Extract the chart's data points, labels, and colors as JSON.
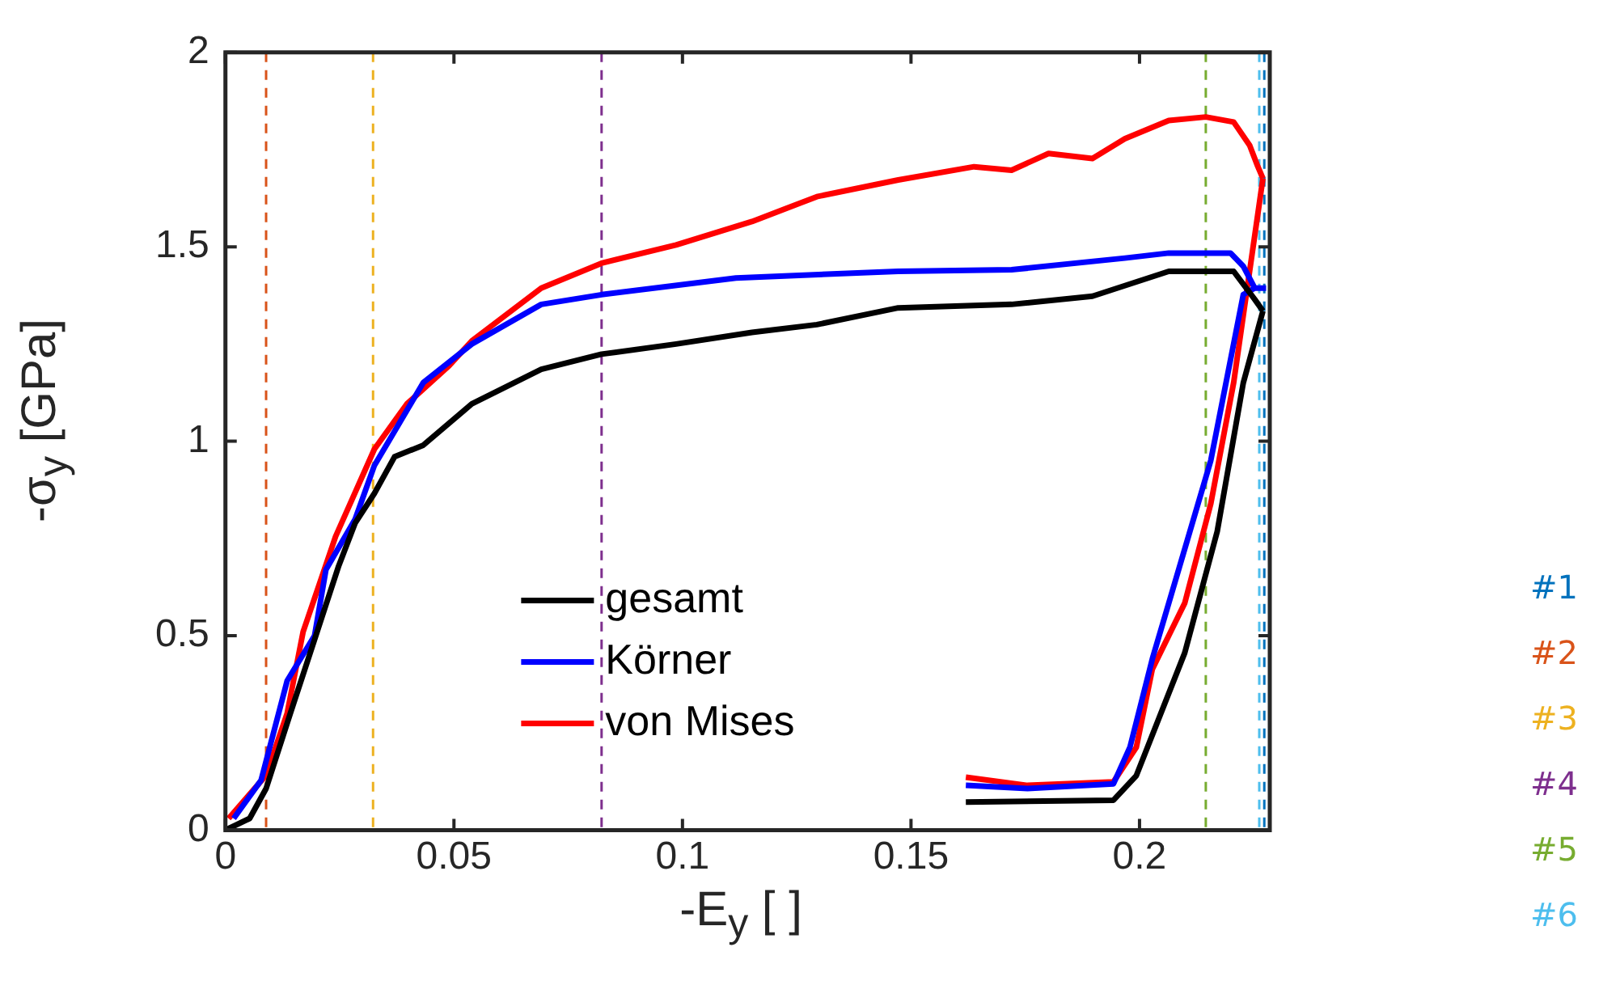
{
  "chart_data": {
    "type": "line",
    "xlabel": "-E$_{y}$ [ ]",
    "ylabel": "-σ$_{y}$ [GPa]",
    "xlim": [
      0,
      0.2285
    ],
    "ylim": [
      0,
      2
    ],
    "xticks": [
      0,
      0.05,
      0.1,
      0.15,
      0.2
    ],
    "yticks": [
      0,
      0.5,
      1,
      1.5,
      2
    ],
    "grid": false,
    "legend": "bottom",
    "line_style": "solid",
    "marker": "none",
    "series": [
      {
        "name": "gesamt",
        "color": "#000000",
        "x": [
          0,
          0.0053,
          0.0089,
          0.0142,
          0.0195,
          0.0248,
          0.0284,
          0.0326,
          0.037,
          0.0433,
          0.0539,
          0.0691,
          0.0823,
          0.0986,
          0.1152,
          0.1294,
          0.1472,
          0.172,
          0.1897,
          0.2064,
          0.2206,
          0.2252,
          0.227,
          null,
          0.162,
          0.1943,
          0.1993,
          0.2099,
          0.217,
          0.2227,
          0.227
        ],
        "values": [
          0,
          0.03,
          0.107,
          0.3,
          0.49,
          0.68,
          0.79,
          0.866,
          0.96,
          0.99,
          1.096,
          1.185,
          1.224,
          1.25,
          1.28,
          1.3,
          1.343,
          1.352,
          1.373,
          1.437,
          1.437,
          1.365,
          1.335,
          null,
          0.072,
          0.077,
          0.14,
          0.456,
          0.768,
          1.15,
          1.335
        ]
      },
      {
        "name": "Körner",
        "color": "#0000ff",
        "x": [
          0.0018,
          0.0078,
          0.0135,
          0.0195,
          0.022,
          0.0284,
          0.0326,
          0.0433,
          0.0539,
          0.0691,
          0.0823,
          0.1117,
          0.1472,
          0.172,
          0.1968,
          0.2064,
          0.2199,
          0.2227,
          0.2252,
          0.2277,
          null,
          0.162,
          0.1755,
          0.1943,
          0.1979,
          0.2028,
          0.2156,
          0.2227,
          0.2252
        ],
        "values": [
          0.03,
          0.128,
          0.384,
          0.5,
          0.67,
          0.8,
          0.938,
          1.151,
          1.25,
          1.352,
          1.377,
          1.42,
          1.437,
          1.441,
          1.471,
          1.484,
          1.484,
          1.45,
          1.394,
          1.394,
          null,
          0.115,
          0.107,
          0.119,
          0.213,
          0.44,
          0.951,
          1.377,
          1.394
        ]
      },
      {
        "name": "von Mises",
        "color": "#ff0000",
        "x": [
          0.0007,
          0.0089,
          0.0135,
          0.017,
          0.0241,
          0.0326,
          0.0397,
          0.0489,
          0.0539,
          0.0691,
          0.0823,
          0.0986,
          0.1152,
          0.1294,
          0.1472,
          0.1638,
          0.172,
          0.1801,
          0.1897,
          0.1968,
          0.2064,
          0.2145,
          0.2206,
          0.2241,
          0.2259,
          0.227,
          null,
          0.162,
          0.1755,
          0.1943,
          0.1993,
          0.2028,
          0.2099,
          0.2156,
          0.2206,
          0.227
        ],
        "values": [
          0.03,
          0.141,
          0.3,
          0.51,
          0.755,
          0.98,
          1.096,
          1.194,
          1.258,
          1.394,
          1.458,
          1.505,
          1.565,
          1.629,
          1.672,
          1.706,
          1.697,
          1.74,
          1.727,
          1.778,
          1.825,
          1.834,
          1.821,
          1.761,
          1.706,
          1.676,
          null,
          0.136,
          0.115,
          0.124,
          0.213,
          0.414,
          0.584,
          0.84,
          1.151,
          1.676
        ]
      }
    ],
    "ref_lines": [
      {
        "axis": "x",
        "value": 0.2273,
        "color": "#0072bd",
        "line_style": "dashed"
      },
      {
        "axis": "x",
        "value": 0.0089,
        "color": "#d95319",
        "line_style": "dashed"
      },
      {
        "axis": "x",
        "value": 0.0323,
        "color": "#edb120",
        "line_style": "dashed"
      },
      {
        "axis": "x",
        "value": 0.0823,
        "color": "#7e2f8e",
        "line_style": "dashed"
      },
      {
        "axis": "x",
        "value": 0.2145,
        "color": "#77ac30",
        "line_style": "dashed"
      },
      {
        "axis": "x",
        "value": 0.2262,
        "color": "#4dbeee",
        "line_style": "dashed"
      }
    ],
    "annotations": [
      "#1",
      "#2",
      "#3",
      "#4",
      "#5",
      "#6"
    ]
  }
}
